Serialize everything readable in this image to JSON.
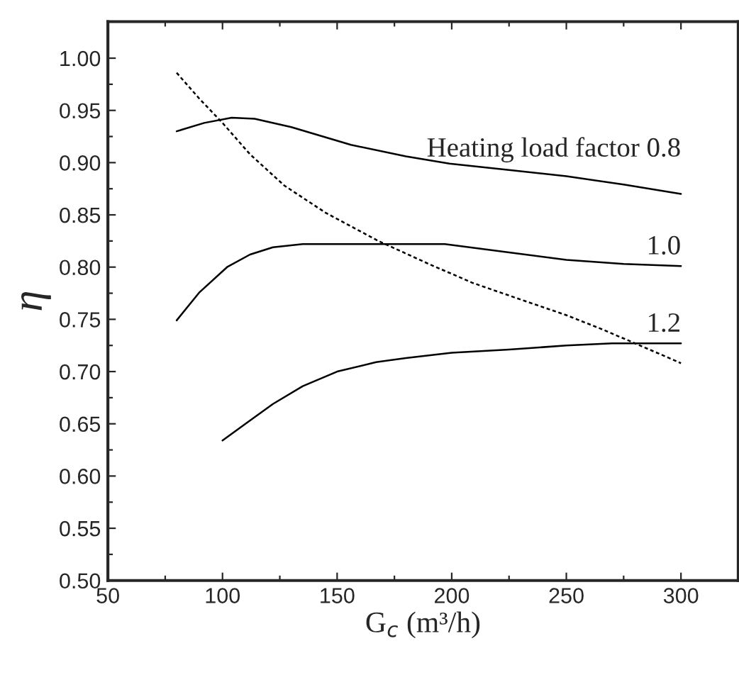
{
  "chart_data": {
    "type": "line",
    "xlabel": "G$_{c}$ (m³/h)",
    "ylabel": "η",
    "series": [
      {
        "name": "Heating load factor 0.8",
        "color": "#000000",
        "line_style": "solid",
        "x": [
          80,
          92,
          104,
          114,
          130,
          156,
          180,
          199,
          225,
          250,
          275,
          300
        ],
        "values": [
          0.93,
          0.938,
          0.943,
          0.942,
          0.934,
          0.917,
          0.906,
          0.899,
          0.893,
          0.887,
          0.879,
          0.87
        ]
      },
      {
        "name": "1.0",
        "color": "#000000",
        "line_style": "solid",
        "x": [
          80,
          90,
          102,
          112,
          122,
          135,
          160,
          197,
          225,
          250,
          275,
          300
        ],
        "values": [
          0.749,
          0.776,
          0.8,
          0.812,
          0.819,
          0.822,
          0.822,
          0.822,
          0.814,
          0.807,
          0.803,
          0.801
        ]
      },
      {
        "name": "1.2",
        "color": "#000000",
        "line_style": "solid",
        "x": [
          100,
          110,
          122,
          135,
          150,
          167,
          180,
          200,
          225,
          250,
          270,
          300
        ],
        "values": [
          0.634,
          0.65,
          0.669,
          0.686,
          0.7,
          0.709,
          0.713,
          0.718,
          0.721,
          0.725,
          0.727,
          0.727
        ]
      },
      {
        "color": "#000000",
        "line_style": "dotted",
        "x": [
          80,
          90,
          100,
          112,
          127,
          145,
          168,
          190,
          209,
          230,
          250,
          265,
          280,
          300
        ],
        "values": [
          0.986,
          0.961,
          0.938,
          0.908,
          0.878,
          0.852,
          0.825,
          0.803,
          0.785,
          0.769,
          0.754,
          0.741,
          0.727,
          0.708
        ]
      }
    ],
    "xlim": [
      50,
      325
    ],
    "xticks": [
      50,
      {
        "value": 75,
        "label": null
      },
      100,
      {
        "value": 125,
        "label": null
      },
      150,
      {
        "value": 175,
        "label": null
      },
      200,
      {
        "value": 225,
        "label": null
      },
      250,
      {
        "value": 275,
        "label": null
      },
      300,
      {
        "value": 325,
        "label": null
      }
    ],
    "ylim": [
      0.5,
      1.035
    ],
    "yticks": [
      "0.50",
      {
        "value": 0.525,
        "label": null
      },
      {
        "value": 0.55,
        "label": "0.55"
      },
      {
        "value": 0.575,
        "label": null
      },
      {
        "value": 0.6,
        "label": "0.60"
      },
      {
        "value": 0.625,
        "label": null
      },
      {
        "value": 0.65,
        "label": "0.65"
      },
      {
        "value": 0.675,
        "label": null
      },
      {
        "value": 0.7,
        "label": "0.70"
      },
      {
        "value": 0.725,
        "label": null
      },
      {
        "value": 0.75,
        "label": "0.75"
      },
      {
        "value": 0.775,
        "label": null
      },
      {
        "value": 0.8,
        "label": "0.80"
      },
      {
        "value": 0.825,
        "label": null
      },
      {
        "value": 0.85,
        "label": "0.85"
      },
      {
        "value": 0.875,
        "label": null
      },
      {
        "value": 0.9,
        "label": "0.90"
      },
      {
        "value": 0.925,
        "label": null
      },
      {
        "value": 0.95,
        "label": "0.95"
      },
      {
        "value": 0.975,
        "label": null
      },
      {
        "value": 1.0,
        "label": "1.00"
      }
    ],
    "grid": false,
    "legend": false,
    "marker": "none"
  }
}
